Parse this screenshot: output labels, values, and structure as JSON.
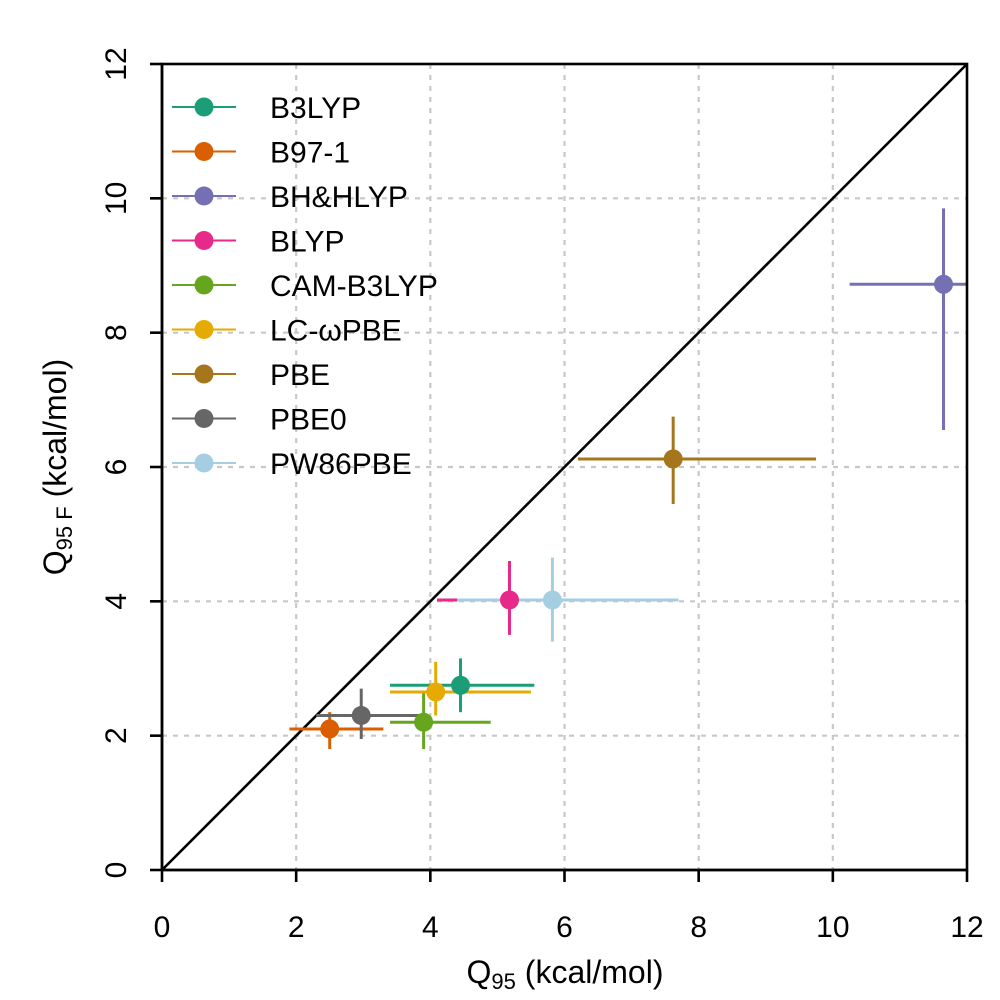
{
  "chart_data": {
    "type": "scatter",
    "xlabel": "Q",
    "xlabel_sub": "95",
    "xlabel_units": " (kcal/mol)",
    "ylabel": "Q",
    "ylabel_sub": "95 F",
    "ylabel_units": " (kcal/mol)",
    "xlim": [
      0,
      12
    ],
    "ylim": [
      0,
      12
    ],
    "xticks": [
      0,
      2,
      4,
      6,
      8,
      10,
      12
    ],
    "yticks": [
      0,
      2,
      4,
      6,
      8,
      10,
      12
    ],
    "xtick_labels": [
      "0",
      "2",
      "4",
      "6",
      "8",
      "10",
      "12"
    ],
    "ytick_labels": [
      "0",
      "2",
      "4",
      "6",
      "8",
      "10",
      "12"
    ],
    "grid": true,
    "diagonal_line": true,
    "legend_position": "top-left",
    "series": [
      {
        "name": "B3LYP",
        "color": "#1b9e77",
        "x": 4.45,
        "y": 2.75,
        "x_err": [
          3.4,
          5.55
        ],
        "y_err": [
          2.35,
          3.15
        ]
      },
      {
        "name": "B97-1",
        "color": "#d95f02",
        "x": 2.5,
        "y": 2.1,
        "x_err": [
          1.9,
          3.3
        ],
        "y_err": [
          1.8,
          2.35
        ]
      },
      {
        "name": "BH&HLYP",
        "color": "#7570b3",
        "x": 11.65,
        "y": 8.72,
        "x_err": [
          10.25,
          12.0
        ],
        "y_err": [
          6.55,
          9.85
        ]
      },
      {
        "name": "BLYP",
        "color": "#e7298a",
        "x": 5.18,
        "y": 4.02,
        "x_err": [
          4.1,
          6.5
        ],
        "y_err": [
          3.5,
          4.6
        ]
      },
      {
        "name": "CAM-B3LYP",
        "color": "#66a61e",
        "x": 3.9,
        "y": 2.2,
        "x_err": [
          3.4,
          4.9
        ],
        "y_err": [
          1.8,
          2.65
        ]
      },
      {
        "name": "LC-ωPBE",
        "color": "#e6ab02",
        "x": 4.08,
        "y": 2.65,
        "x_err": [
          3.4,
          5.5
        ],
        "y_err": [
          2.3,
          3.1
        ]
      },
      {
        "name": "PBE",
        "color": "#a6761d",
        "x": 7.62,
        "y": 6.12,
        "x_err": [
          6.2,
          9.75
        ],
        "y_err": [
          5.45,
          6.75
        ]
      },
      {
        "name": "PBE0",
        "color": "#666666",
        "x": 2.97,
        "y": 2.3,
        "x_err": [
          2.3,
          3.9
        ],
        "y_err": [
          1.95,
          2.7
        ]
      },
      {
        "name": "PW86PBE",
        "color": "#a6cee3",
        "x": 5.82,
        "y": 4.02,
        "x_err": [
          4.4,
          7.7
        ],
        "y_err": [
          3.4,
          4.65
        ]
      }
    ]
  }
}
